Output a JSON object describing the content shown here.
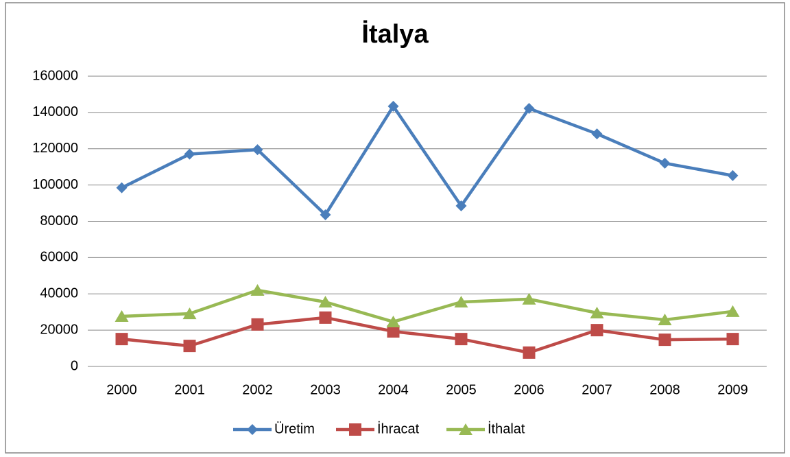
{
  "chart_data": {
    "type": "line",
    "title": "İtalya",
    "categories": [
      "2000",
      "2001",
      "2002",
      "2003",
      "2004",
      "2005",
      "2006",
      "2007",
      "2008",
      "2009"
    ],
    "series": [
      {
        "name": "Üretim",
        "color": "#4a7ebb",
        "marker": "diamond",
        "values": [
          98500,
          117000,
          119500,
          83600,
          143400,
          88500,
          142200,
          128200,
          112000,
          105200
        ]
      },
      {
        "name": "İhracat",
        "color": "#be4b48",
        "marker": "square",
        "values": [
          15100,
          11300,
          23100,
          26900,
          19300,
          15100,
          7600,
          20000,
          14700,
          15100
        ]
      },
      {
        "name": "İthalat",
        "color": "#98b954",
        "marker": "triangle",
        "values": [
          27600,
          29100,
          42000,
          35500,
          24600,
          35500,
          37100,
          29500,
          25700,
          30300
        ]
      }
    ],
    "ylim": [
      0,
      160000
    ],
    "yticks": [
      0,
      20000,
      40000,
      60000,
      80000,
      100000,
      120000,
      140000,
      160000
    ],
    "grid": true,
    "legend": "bottom"
  }
}
